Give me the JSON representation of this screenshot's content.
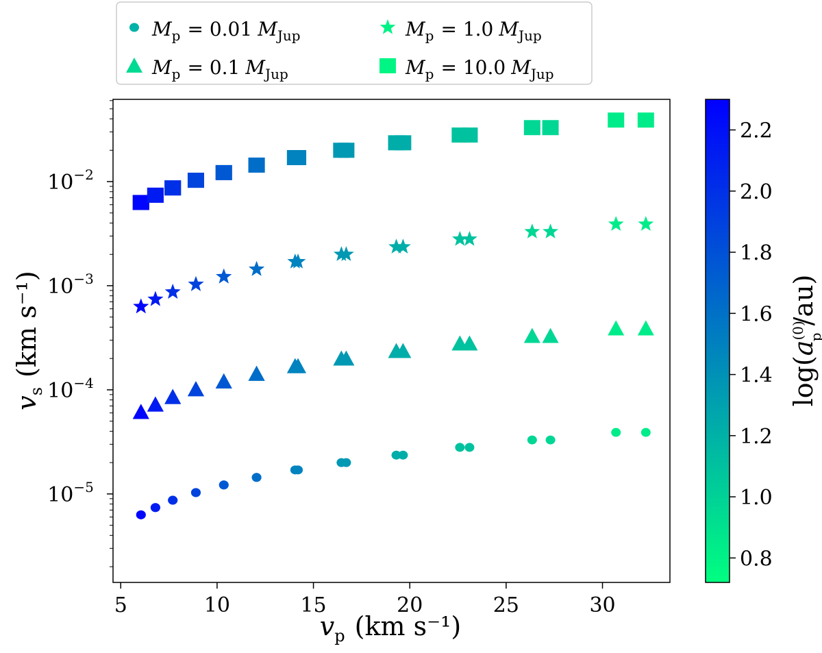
{
  "chart_data": {
    "type": "scatter",
    "xlabel": {
      "main": "v",
      "sub": "p",
      "units": "(km s⁻¹)"
    },
    "ylabel": {
      "main": "v",
      "sub": "s",
      "units": "(km s⁻¹)"
    },
    "xlim": [
      4.6,
      33.5
    ],
    "ylim_log10": [
      -5.85,
      -1.21
    ],
    "yscale": "log",
    "xticks": [
      5,
      10,
      15,
      20,
      25,
      30
    ],
    "yticks": [
      {
        "value": 1e-05,
        "base": "10",
        "exp": "−5"
      },
      {
        "value": 0.0001,
        "base": "10",
        "exp": "−4"
      },
      {
        "value": 0.001,
        "base": "10",
        "exp": "−3"
      },
      {
        "value": 0.01,
        "base": "10",
        "exp": "−2"
      }
    ],
    "grid": false,
    "legend_position": "top, above plot",
    "colorbar": {
      "label": {
        "pre": "log(",
        "a": "a",
        "sup": "(0)",
        "sub": "p",
        "post": "/au)"
      },
      "range": [
        0.72,
        2.3
      ],
      "ticks": [
        "0.8",
        "1.0",
        "1.2",
        "1.4",
        "1.6",
        "1.8",
        "2.0",
        "2.2"
      ],
      "colormap": "winter",
      "color_low": "#00ff80",
      "color_high": "#0000ff"
    },
    "x": [
      6.05,
      6.8,
      7.7,
      8.9,
      10.35,
      12.05,
      14.1,
      16.55,
      19.5,
      22.85,
      26.85,
      31.45
    ],
    "x_series": [
      [
        6.05,
        6.8,
        7.7,
        8.9,
        10.35,
        12.05,
        14.05,
        16.45,
        19.3,
        22.6,
        26.35,
        30.7
      ],
      [
        6.05,
        6.8,
        7.7,
        8.9,
        10.35,
        12.05,
        14.2,
        16.7,
        19.65,
        23.1,
        27.3,
        32.25
      ]
    ],
    "log_a": [
      2.27,
      2.14,
      2.01,
      1.88,
      1.75,
      1.62,
      1.49,
      1.36,
      1.23,
      1.1,
      0.97,
      0.84
    ],
    "series": [
      {
        "marker": "circle",
        "legend": {
          "lhs": "M",
          "lhs_sub": "p",
          "value": "= 0.01",
          "unit": "M",
          "unit_sub": "Jup"
        },
        "values": [
          6.3e-06,
          7.4e-06,
          8.7e-06,
          1.03e-05,
          1.22e-05,
          1.44e-05,
          1.7e-05,
          2e-05,
          2.36e-05,
          2.8e-05,
          3.3e-05,
          3.9e-05
        ]
      },
      {
        "marker": "triangle",
        "legend": {
          "lhs": "M",
          "lhs_sub": "p",
          "value": "= 0.1",
          "unit": "M",
          "unit_sub": "Jup"
        },
        "values": [
          6.1e-05,
          7.2e-05,
          8.5e-05,
          0.000101,
          0.00012,
          0.000142,
          0.000168,
          0.000199,
          0.000235,
          0.000278,
          0.000328,
          0.000388
        ]
      },
      {
        "marker": "star",
        "legend": {
          "lhs": "M",
          "lhs_sub": "p",
          "value": "= 1.0",
          "unit": "M",
          "unit_sub": "Jup"
        },
        "values": [
          0.00063,
          0.00074,
          0.00087,
          0.00103,
          0.00122,
          0.00144,
          0.0017,
          0.002,
          0.00236,
          0.0028,
          0.0033,
          0.0039
        ]
      },
      {
        "marker": "square",
        "legend": {
          "lhs": "M",
          "lhs_sub": "p",
          "value": "= 10.0",
          "unit": "M",
          "unit_sub": "Jup"
        },
        "values": [
          0.0063,
          0.0074,
          0.0087,
          0.0103,
          0.0122,
          0.0144,
          0.017,
          0.02,
          0.0236,
          0.028,
          0.033,
          0.039
        ]
      }
    ]
  }
}
